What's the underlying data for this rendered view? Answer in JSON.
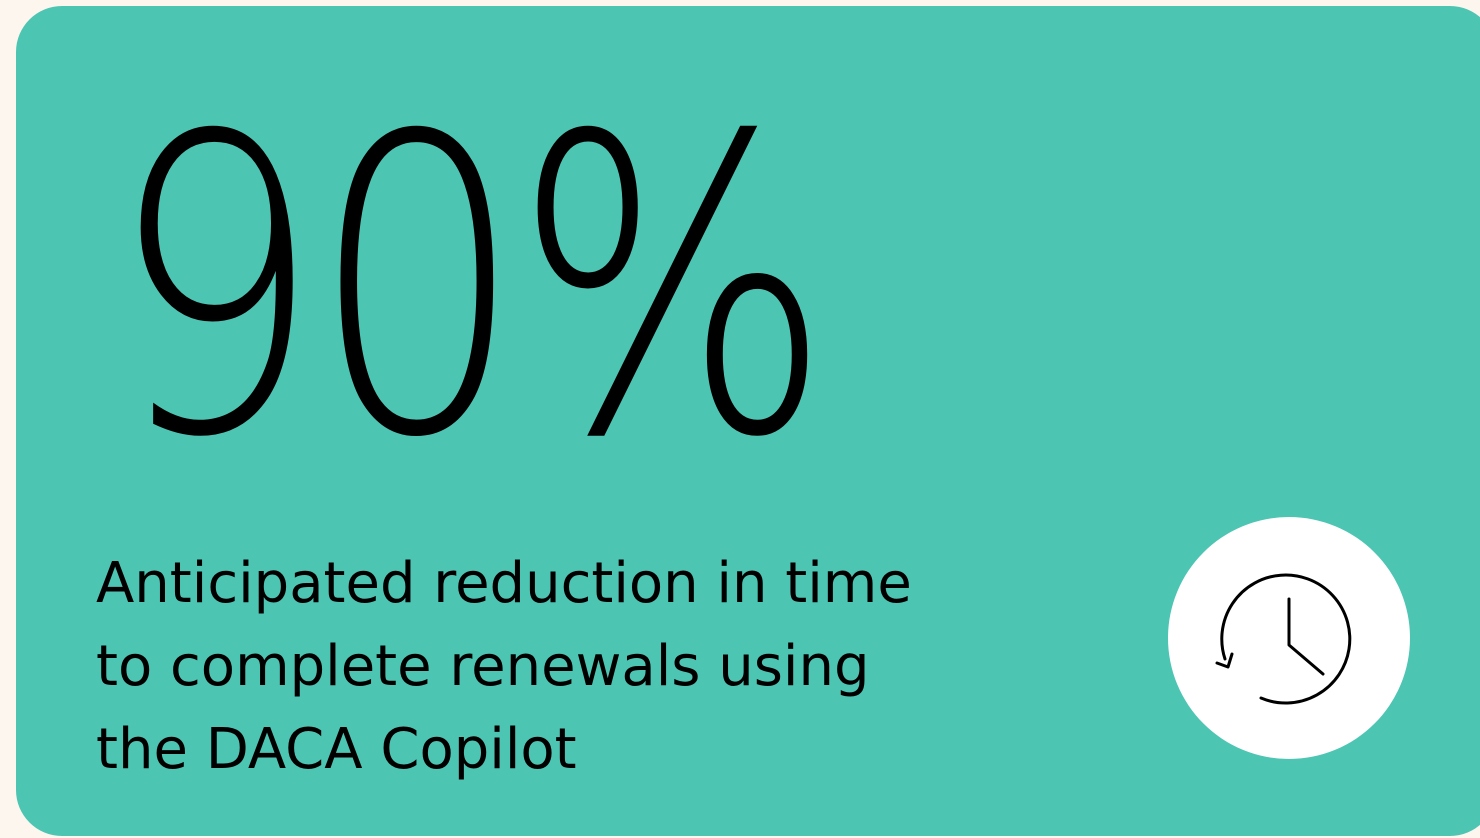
{
  "card": {
    "background_color": "#4dc5b3",
    "stat_value": "90%",
    "description": "Anticipated reduction in time\nto complete renewals using\nthe DACA Copilot",
    "icon": "clock-history-icon"
  }
}
